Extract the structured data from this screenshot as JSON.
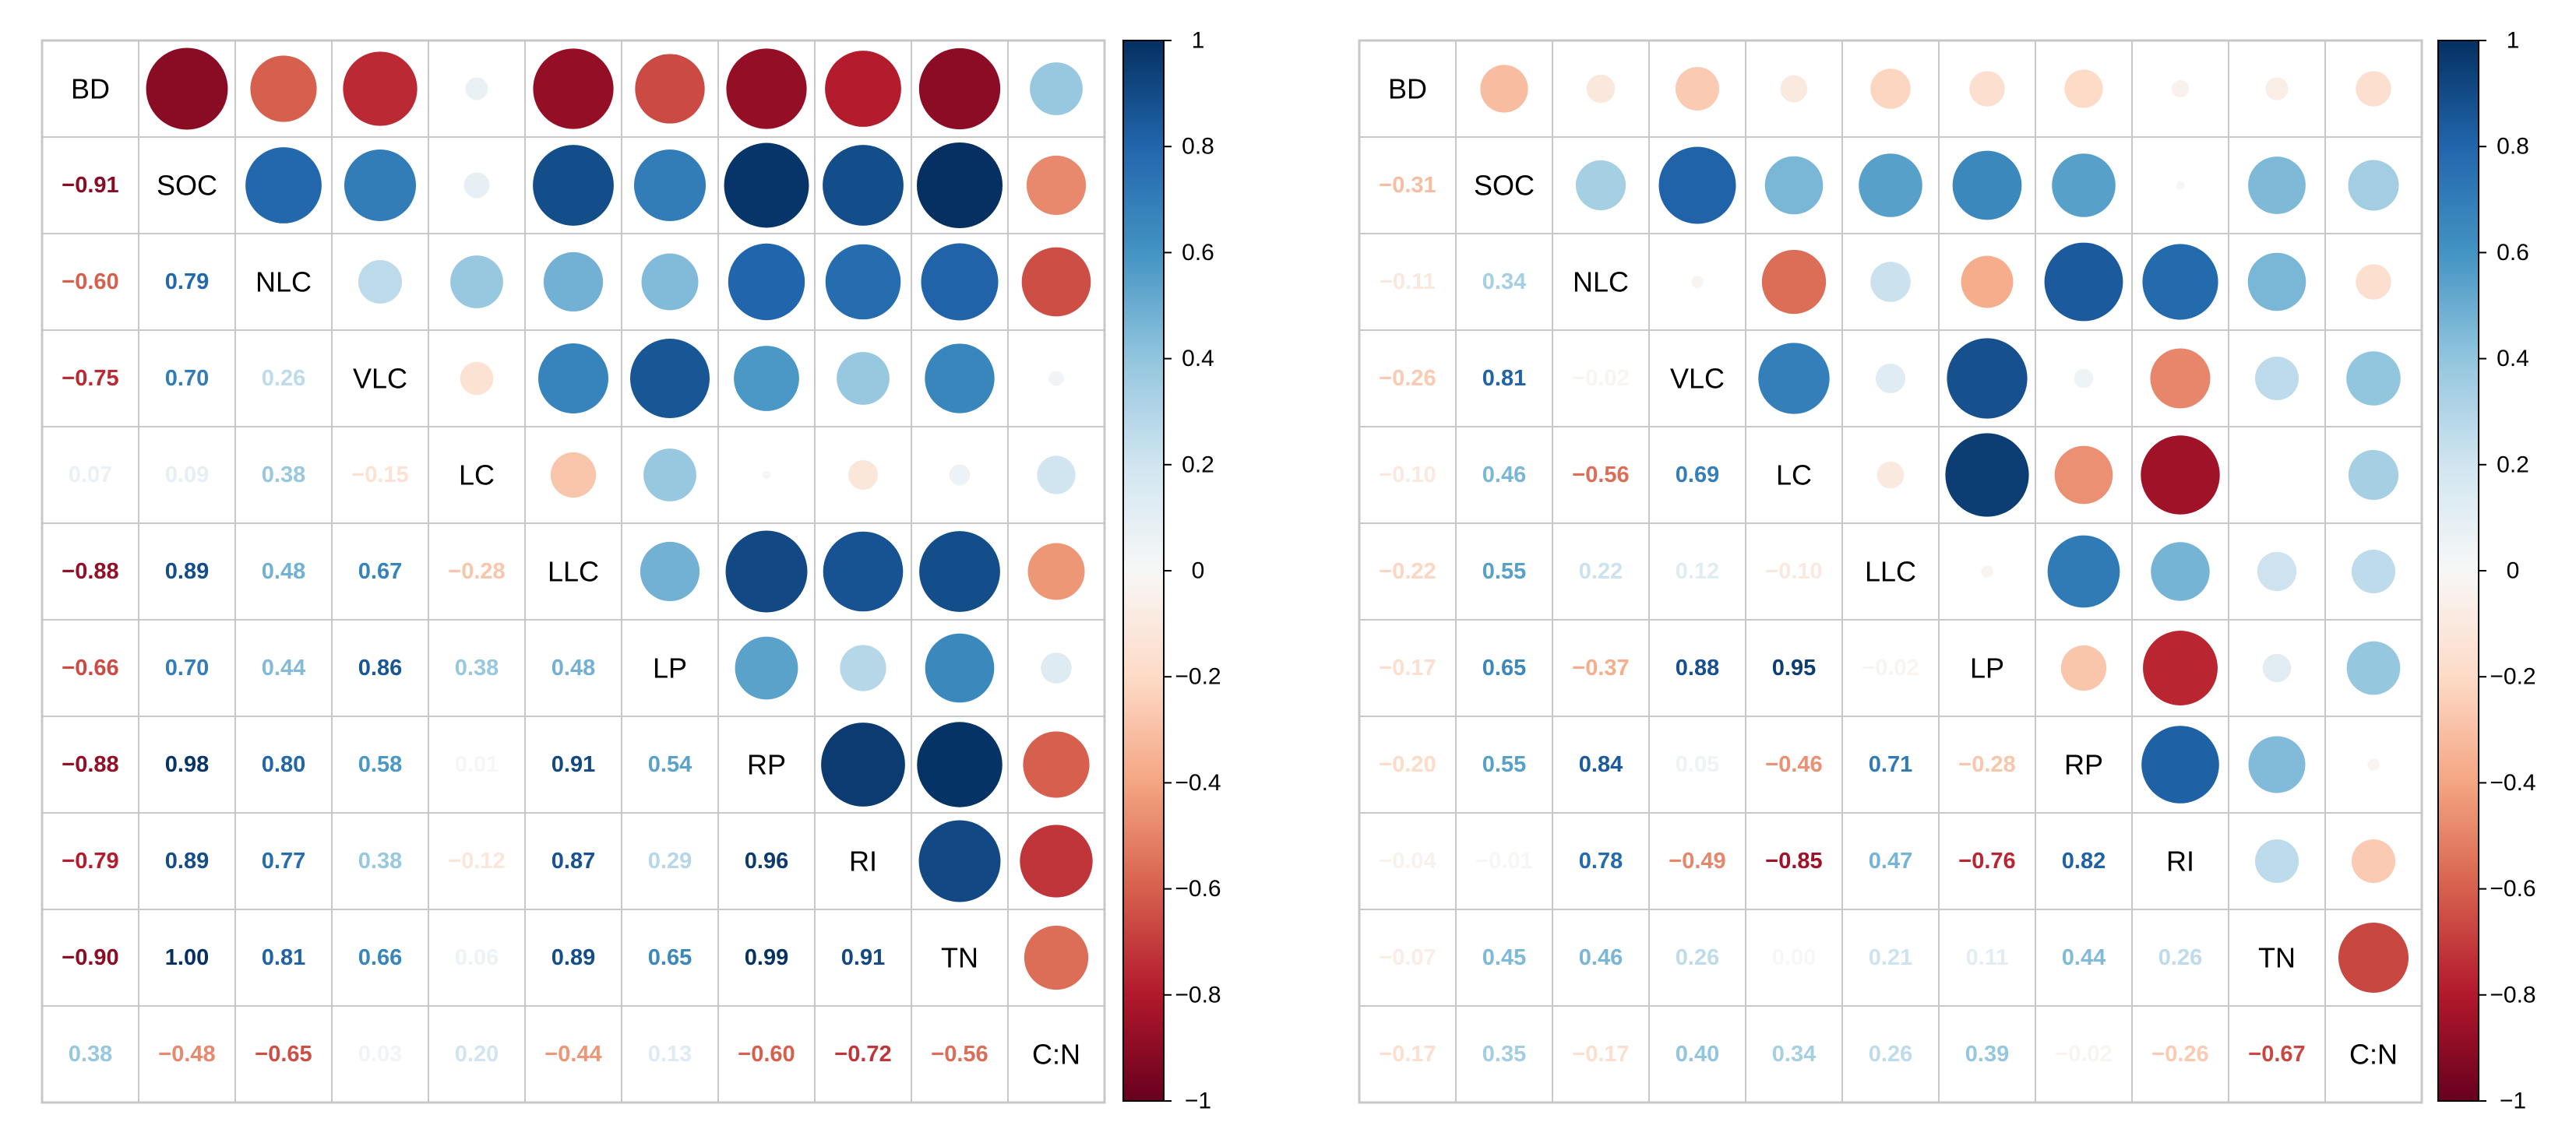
{
  "chart_data": [
    {
      "type": "heatmap",
      "subtype": "correlation-matrix-mixed",
      "title": "",
      "upper_triangle": "circle",
      "lower_triangle": "number",
      "variables": [
        "BD",
        "SOC",
        "NLC",
        "VLC",
        "LC",
        "LLC",
        "LP",
        "RP",
        "RI",
        "TN",
        "C:N"
      ],
      "matrix": [
        [
          1.0,
          -0.91,
          -0.6,
          -0.75,
          0.07,
          -0.88,
          -0.66,
          -0.88,
          -0.79,
          -0.9,
          0.38
        ],
        [
          -0.91,
          1.0,
          0.79,
          0.7,
          0.09,
          0.89,
          0.7,
          0.98,
          0.89,
          1.0,
          -0.48
        ],
        [
          -0.6,
          0.79,
          1.0,
          0.26,
          0.38,
          0.48,
          0.44,
          0.8,
          0.77,
          0.81,
          -0.65
        ],
        [
          -0.75,
          0.7,
          0.26,
          1.0,
          -0.15,
          0.67,
          0.86,
          0.58,
          0.38,
          0.66,
          0.03
        ],
        [
          0.07,
          0.09,
          0.38,
          -0.15,
          1.0,
          -0.28,
          0.38,
          0.01,
          -0.12,
          0.06,
          0.2
        ],
        [
          -0.88,
          0.89,
          0.48,
          0.67,
          -0.28,
          1.0,
          0.48,
          0.91,
          0.87,
          0.89,
          -0.44
        ],
        [
          -0.66,
          0.7,
          0.44,
          0.86,
          0.38,
          0.48,
          1.0,
          0.54,
          0.29,
          0.65,
          0.13
        ],
        [
          -0.88,
          0.98,
          0.8,
          0.58,
          0.01,
          0.91,
          0.54,
          1.0,
          0.96,
          0.99,
          -0.6
        ],
        [
          -0.79,
          0.89,
          0.77,
          0.38,
          -0.12,
          0.87,
          0.29,
          0.96,
          1.0,
          0.91,
          -0.72
        ],
        [
          -0.9,
          1.0,
          0.81,
          0.66,
          0.06,
          0.89,
          0.65,
          0.99,
          0.91,
          1.0,
          -0.56
        ],
        [
          0.38,
          -0.48,
          -0.65,
          0.03,
          0.2,
          -0.44,
          0.13,
          -0.6,
          -0.72,
          -0.56,
          1.0
        ]
      ],
      "colorbar": {
        "range": [
          -1,
          1
        ],
        "ticks": [
          "1",
          "0.8",
          "0.6",
          "0.4",
          "0.2",
          "0",
          "−0.2",
          "−0.4",
          "−0.6",
          "−0.8",
          "−1"
        ],
        "tick_values": [
          1,
          0.8,
          0.6,
          0.4,
          0.2,
          0,
          -0.2,
          -0.4,
          -0.6,
          -0.8,
          -1
        ]
      }
    },
    {
      "type": "heatmap",
      "subtype": "correlation-matrix-mixed",
      "title": "",
      "upper_triangle": "circle",
      "lower_triangle": "number",
      "variables": [
        "BD",
        "SOC",
        "NLC",
        "VLC",
        "LC",
        "LLC",
        "LP",
        "RP",
        "RI",
        "TN",
        "C:N"
      ],
      "matrix": [
        [
          1.0,
          -0.31,
          -0.11,
          -0.26,
          -0.1,
          -0.22,
          -0.17,
          -0.2,
          -0.04,
          -0.07,
          -0.17
        ],
        [
          -0.31,
          1.0,
          0.34,
          0.81,
          0.46,
          0.55,
          0.65,
          0.55,
          -0.01,
          0.45,
          0.35
        ],
        [
          -0.11,
          0.34,
          1.0,
          -0.02,
          -0.56,
          0.22,
          -0.37,
          0.84,
          0.78,
          0.46,
          -0.17
        ],
        [
          -0.26,
          0.81,
          -0.02,
          1.0,
          0.69,
          0.12,
          0.88,
          0.05,
          -0.49,
          0.26,
          0.4
        ],
        [
          -0.1,
          0.46,
          -0.56,
          0.69,
          1.0,
          -0.1,
          0.95,
          -0.46,
          -0.85,
          0.0,
          0.34
        ],
        [
          -0.22,
          0.55,
          0.22,
          0.12,
          -0.1,
          1.0,
          -0.02,
          0.71,
          0.47,
          0.21,
          0.26
        ],
        [
          -0.17,
          0.65,
          -0.37,
          0.88,
          0.95,
          -0.02,
          1.0,
          -0.28,
          -0.76,
          0.11,
          0.39
        ],
        [
          -0.2,
          0.55,
          0.84,
          0.05,
          -0.46,
          0.71,
          -0.28,
          1.0,
          0.82,
          0.44,
          -0.02
        ],
        [
          -0.04,
          -0.01,
          0.78,
          -0.49,
          -0.85,
          0.47,
          -0.76,
          0.82,
          1.0,
          0.26,
          -0.26
        ],
        [
          -0.07,
          0.45,
          0.46,
          0.26,
          0.0,
          0.21,
          0.11,
          0.44,
          0.26,
          1.0,
          -0.67
        ],
        [
          -0.17,
          0.35,
          -0.17,
          0.4,
          0.34,
          0.26,
          0.39,
          -0.02,
          -0.26,
          -0.67,
          1.0
        ]
      ],
      "colorbar": {
        "range": [
          -1,
          1
        ],
        "ticks": [
          "1",
          "0.8",
          "0.6",
          "0.4",
          "0.2",
          "0",
          "−0.2",
          "−0.4",
          "−0.6",
          "−0.8",
          "−1"
        ],
        "tick_values": [
          1,
          0.8,
          0.6,
          0.4,
          0.2,
          0,
          -0.2,
          -0.4,
          -0.6,
          -0.8,
          -1
        ]
      }
    }
  ]
}
